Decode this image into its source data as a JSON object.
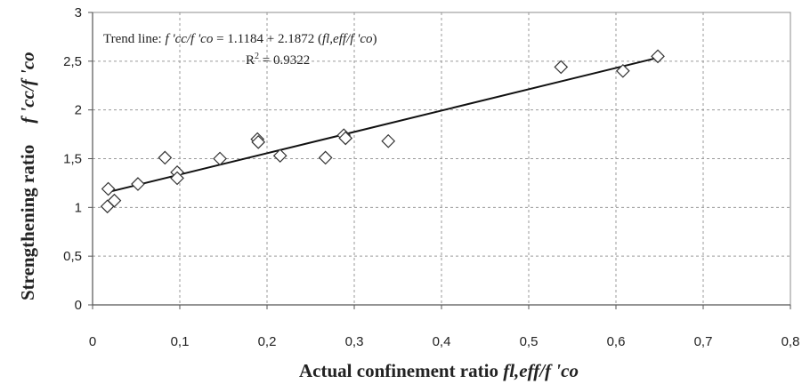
{
  "chart_data": {
    "type": "scatter",
    "title": "",
    "xlabel": {
      "text": "Actual confinement ratio ",
      "symbol": "fl,eff/f 'co"
    },
    "ylabel": {
      "text": "Strengthening ratio",
      "symbol": "f 'cc/f 'co"
    },
    "xlim": [
      0,
      0.8
    ],
    "ylim": [
      0,
      3
    ],
    "xticks": [
      "0",
      "0,1",
      "0,2",
      "0,3",
      "0,4",
      "0,5",
      "0,6",
      "0,7",
      "0,8"
    ],
    "yticks": [
      "0",
      "0,5",
      "1",
      "1,5",
      "2",
      "2,5",
      "3"
    ],
    "grid": true,
    "marker": "diamond",
    "series": [
      {
        "x": [
          0.017,
          0.018,
          0.025,
          0.052,
          0.083,
          0.097,
          0.097,
          0.146,
          0.189,
          0.19,
          0.215,
          0.267,
          0.288,
          0.29,
          0.339,
          0.537,
          0.608,
          0.648
        ],
        "y": [
          1.01,
          1.19,
          1.07,
          1.24,
          1.51,
          1.36,
          1.3,
          1.5,
          1.7,
          1.67,
          1.53,
          1.51,
          1.74,
          1.71,
          1.68,
          2.44,
          2.4,
          2.55
        ]
      }
    ],
    "trend_line": {
      "intercept": 1.1184,
      "slope": 2.1872,
      "x_range": [
        0.018,
        0.648
      ],
      "label_prefix": "Trend line: ",
      "label_formula_lhs": "f 'cc/f 'co",
      "label_formula_mid": " = 1.1184 + 2.1872 (",
      "label_formula_var": "fl,eff/f 'co",
      "label_formula_end": ")",
      "r2_label": "R",
      "r2_sup": "2",
      "r2_value": " = 0.9322"
    }
  }
}
